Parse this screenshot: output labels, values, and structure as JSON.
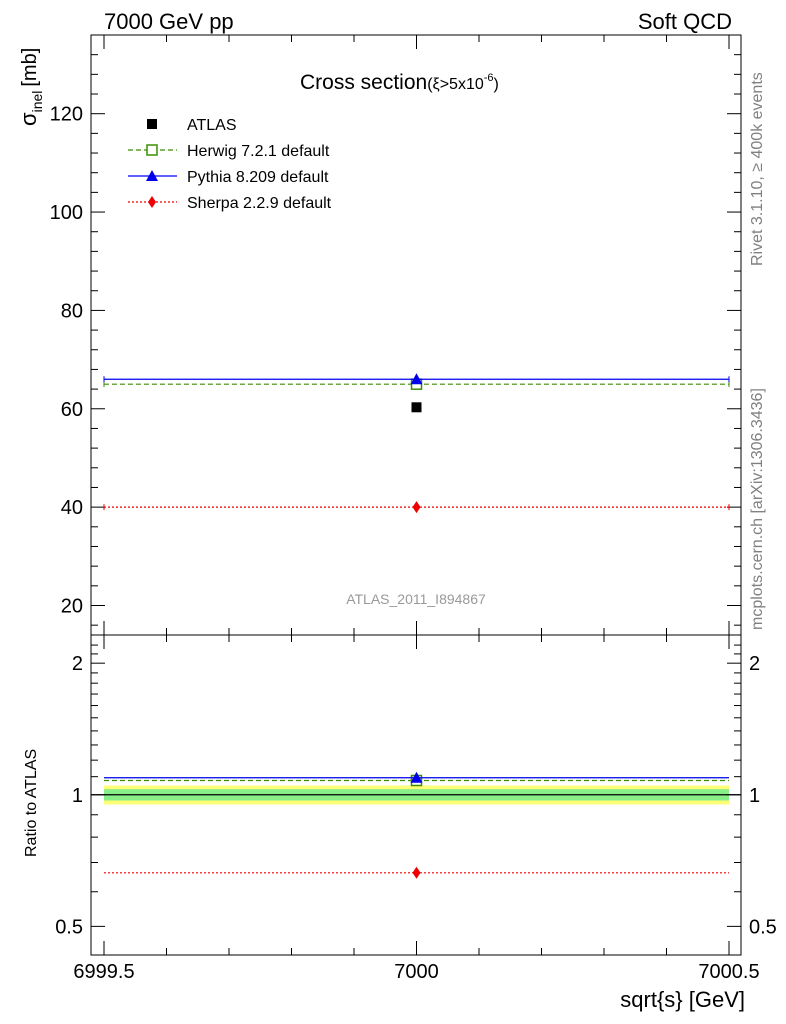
{
  "header": {
    "left": "7000 GeV pp",
    "right": "Soft QCD"
  },
  "side_labels": {
    "rivet": "Rivet 3.1.10, ≥ 400k events",
    "mcplots": "mcplots.cern.ch [arXiv:1306.3436]"
  },
  "chart_data": [
    {
      "type": "scatter",
      "title": "Cross section",
      "title_condition": "(ξ>5x10",
      "title_exponent": "-6",
      "title_close": ")",
      "ylabel_main": "σ",
      "ylabel_sub": "inel",
      "ylabel_unit": "[mb]",
      "ylim": [
        14,
        136
      ],
      "yticks": [
        "20",
        "40",
        "60",
        "80",
        "100",
        "120"
      ],
      "analysis_label": "ATLAS_2011_I894867",
      "legend_position": "top-left",
      "series": [
        {
          "name": "ATLAS",
          "x": [
            7000
          ],
          "y": [
            60.3
          ],
          "color": "#000000",
          "marker": "square-filled",
          "line": "none"
        },
        {
          "name": "Herwig 7.2.1 default",
          "x": [
            7000
          ],
          "y": [
            65.0
          ],
          "xrange": [
            6999.5,
            7000.5
          ],
          "color": "#3a8f00",
          "marker": "square-open",
          "line": "dashed"
        },
        {
          "name": "Pythia 8.209 default",
          "x": [
            7000
          ],
          "y": [
            66.0
          ],
          "xrange": [
            6999.5,
            7000.5
          ],
          "color": "#0000ee",
          "marker": "triangle",
          "line": "solid"
        },
        {
          "name": "Sherpa 2.2.9 default",
          "x": [
            7000
          ],
          "y": [
            40.0
          ],
          "xrange": [
            6999.5,
            7000.5
          ],
          "color": "#ee0000",
          "marker": "diamond",
          "line": "dotted"
        }
      ]
    },
    {
      "type": "scatter",
      "ylabel": "Ratio to ATLAS",
      "yscale": "log",
      "ylim": [
        0.43,
        2.32
      ],
      "yticks": [
        "0.5",
        "1",
        "2"
      ],
      "xlabel": "sqrt{s} [GeV]",
      "xlim": [
        6999.5,
        7000.5
      ],
      "xticks": [
        "6999.5",
        "7000",
        "7000.5"
      ],
      "reference_band": {
        "inner": [
          0.97,
          1.03
        ],
        "outer": [
          0.95,
          1.05
        ],
        "inner_color": "#88ee88",
        "outer_color": "#ffff77"
      },
      "series": [
        {
          "name": "Herwig 7.2.1 default",
          "x": [
            7000
          ],
          "y": [
            1.078
          ],
          "color": "#3a8f00",
          "marker": "square-open",
          "line": "dashed"
        },
        {
          "name": "Pythia 8.209 default",
          "x": [
            7000
          ],
          "y": [
            1.094
          ],
          "color": "#0000ee",
          "marker": "triangle",
          "line": "solid"
        },
        {
          "name": "Sherpa 2.2.9 default",
          "x": [
            7000
          ],
          "y": [
            0.663
          ],
          "color": "#ee0000",
          "marker": "diamond",
          "line": "dotted"
        }
      ]
    }
  ]
}
